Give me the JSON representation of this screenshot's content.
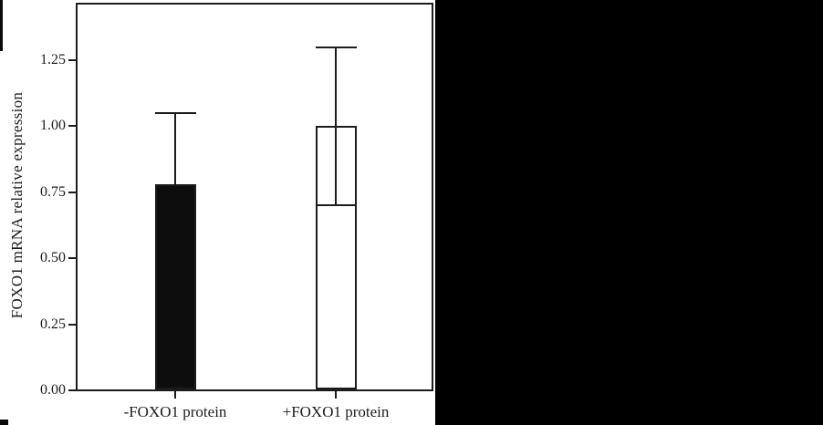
{
  "figure": {
    "background": "#ffffff",
    "right_panel_color": "#000000",
    "line_color": "#1c1c1c"
  },
  "chart_data": {
    "type": "bar",
    "title": "",
    "xlabel": "",
    "ylabel": "FOXO1 mRNA relative expression",
    "categories": [
      "-FOXO1 protein",
      "+FOXO1 protein"
    ],
    "values": [
      0.78,
      1.0
    ],
    "error_upper": [
      1.05,
      1.3
    ],
    "error_lower": [
      null,
      0.7
    ],
    "bar_fill": [
      "#0d0d0d",
      "#ffffff"
    ],
    "yticks": [
      "0.00",
      "0.25",
      "0.50",
      "0.75",
      "1.00",
      "1.25"
    ],
    "ylim": [
      0,
      1.46
    ],
    "grid": false,
    "legend": null
  }
}
